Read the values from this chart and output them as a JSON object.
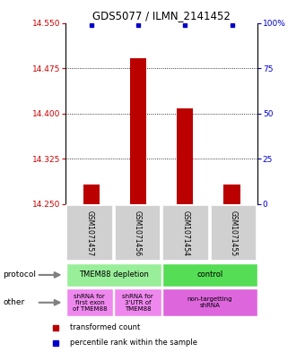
{
  "title": "GDS5077 / ILMN_2141452",
  "samples": [
    "GSM1071457",
    "GSM1071456",
    "GSM1071454",
    "GSM1071455"
  ],
  "transformed_counts": [
    14.283,
    14.492,
    14.408,
    14.283
  ],
  "bar_base": 14.25,
  "bar_color": "#bb0000",
  "dot_color": "#0000cc",
  "ylim": [
    14.25,
    14.55
  ],
  "yticks": [
    14.25,
    14.325,
    14.4,
    14.475,
    14.55
  ],
  "right_yticks": [
    0,
    25,
    50,
    75,
    100
  ],
  "right_yticklabels": [
    "0",
    "25",
    "50",
    "75",
    "100%"
  ],
  "sample_bg_color": "#d0d0d0",
  "protocol_groups": [
    {
      "start": 0,
      "end": 2,
      "label": "TMEM88 depletion",
      "color": "#99ee99"
    },
    {
      "start": 2,
      "end": 4,
      "label": "control",
      "color": "#55dd55"
    }
  ],
  "other_groups": [
    {
      "start": 0,
      "end": 1,
      "label": "shRNA for\nfirst exon\nof TMEM88",
      "color": "#ee88ee"
    },
    {
      "start": 1,
      "end": 2,
      "label": "shRNA for\n3'UTR of\nTMEM88",
      "color": "#ee88ee"
    },
    {
      "start": 2,
      "end": 4,
      "label": "non-targetting\nshRNA",
      "color": "#dd66dd"
    }
  ],
  "legend_red": "transformed count",
  "legend_blue": "percentile rank within the sample",
  "left_tick_color": "#cc0000",
  "right_tick_color": "#0000cc",
  "bar_width": 0.35
}
